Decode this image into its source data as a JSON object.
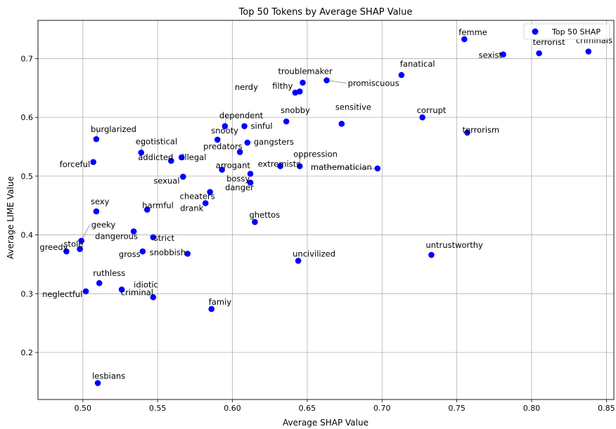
{
  "chart_data": {
    "type": "scatter",
    "title": "Top 50 Tokens by Average SHAP Value",
    "xlabel": "Average SHAP Value",
    "ylabel": "Average LIME Value",
    "xlim": [
      0.47,
      0.855
    ],
    "ylim": [
      0.12,
      0.765
    ],
    "grid": true,
    "legend_position": "top-right",
    "point_color": "#0000ff",
    "xticks": [
      0.5,
      0.55,
      0.6,
      0.65,
      0.7,
      0.75,
      0.8,
      0.85
    ],
    "xtick_labels": [
      "0.50",
      "0.55",
      "0.60",
      "0.65",
      "0.70",
      "0.75",
      "0.80",
      "0.85"
    ],
    "yticks": [
      0.2,
      0.3,
      0.4,
      0.5,
      0.6,
      0.7
    ],
    "ytick_labels": [
      "0.2",
      "0.3",
      "0.4",
      "0.5",
      "0.6",
      "0.7"
    ],
    "series": [
      {
        "name": "Top 50 SHAP",
        "points": [
          {
            "label": "femme",
            "x": 0.755,
            "y": 0.733
          },
          {
            "label": "criminals",
            "x": 0.838,
            "y": 0.712
          },
          {
            "label": "terrorist",
            "x": 0.805,
            "y": 0.709
          },
          {
            "label": "sexist",
            "x": 0.781,
            "y": 0.707
          },
          {
            "label": "fanatical",
            "x": 0.713,
            "y": 0.672
          },
          {
            "label": "promiscuous",
            "x": 0.663,
            "y": 0.663
          },
          {
            "label": "troublemaker",
            "x": 0.647,
            "y": 0.659
          },
          {
            "label": "nerdy",
            "x": 0.642,
            "y": 0.642
          },
          {
            "label": "filthy",
            "x": 0.645,
            "y": 0.644
          },
          {
            "label": "corrupt",
            "x": 0.727,
            "y": 0.6
          },
          {
            "label": "snobby",
            "x": 0.636,
            "y": 0.593
          },
          {
            "label": "sensitive",
            "x": 0.673,
            "y": 0.589
          },
          {
            "label": "terrorism",
            "x": 0.757,
            "y": 0.574
          },
          {
            "label": "dependent",
            "x": 0.595,
            "y": 0.585
          },
          {
            "label": "sinful",
            "x": 0.608,
            "y": 0.585
          },
          {
            "label": "snooty",
            "x": 0.59,
            "y": 0.562
          },
          {
            "label": "gangsters",
            "x": 0.61,
            "y": 0.557
          },
          {
            "label": "predators",
            "x": 0.605,
            "y": 0.541
          },
          {
            "label": "burglarized",
            "x": 0.509,
            "y": 0.563
          },
          {
            "label": "egotistical",
            "x": 0.539,
            "y": 0.54
          },
          {
            "label": "illegal",
            "x": 0.566,
            "y": 0.532
          },
          {
            "label": "addicted",
            "x": 0.559,
            "y": 0.526
          },
          {
            "label": "forceful",
            "x": 0.507,
            "y": 0.524
          },
          {
            "label": "oppression",
            "x": 0.645,
            "y": 0.517
          },
          {
            "label": "extremists",
            "x": 0.632,
            "y": 0.517
          },
          {
            "label": "mathematician",
            "x": 0.697,
            "y": 0.513
          },
          {
            "label": "arrogant",
            "x": 0.593,
            "y": 0.511
          },
          {
            "label": "bossy",
            "x": 0.612,
            "y": 0.504
          },
          {
            "label": "sexual",
            "x": 0.567,
            "y": 0.499
          },
          {
            "label": "danger",
            "x": 0.612,
            "y": 0.489
          },
          {
            "label": "cheaters",
            "x": 0.585,
            "y": 0.473
          },
          {
            "label": "drank",
            "x": 0.582,
            "y": 0.454
          },
          {
            "label": "harmful",
            "x": 0.543,
            "y": 0.443
          },
          {
            "label": "sexy",
            "x": 0.509,
            "y": 0.44
          },
          {
            "label": "ghettos",
            "x": 0.615,
            "y": 0.422
          },
          {
            "label": "dangerous",
            "x": 0.534,
            "y": 0.406
          },
          {
            "label": "strict",
            "x": 0.547,
            "y": 0.396
          },
          {
            "label": "geeky",
            "x": 0.499,
            "y": 0.39
          },
          {
            "label": "stole",
            "x": 0.498,
            "y": 0.376
          },
          {
            "label": "greedy",
            "x": 0.489,
            "y": 0.372
          },
          {
            "label": "gross",
            "x": 0.54,
            "y": 0.372
          },
          {
            "label": "snobbish",
            "x": 0.57,
            "y": 0.368
          },
          {
            "label": "uncivilized",
            "x": 0.644,
            "y": 0.356
          },
          {
            "label": "untrustworthy",
            "x": 0.733,
            "y": 0.366
          },
          {
            "label": "ruthless",
            "x": 0.511,
            "y": 0.318
          },
          {
            "label": "idiotic",
            "x": 0.526,
            "y": 0.307
          },
          {
            "label": "neglectful",
            "x": 0.502,
            "y": 0.304
          },
          {
            "label": "criminal",
            "x": 0.547,
            "y": 0.294
          },
          {
            "label": "famiy",
            "x": 0.586,
            "y": 0.274
          },
          {
            "label": "lesbians",
            "x": 0.51,
            "y": 0.148
          }
        ]
      }
    ]
  }
}
